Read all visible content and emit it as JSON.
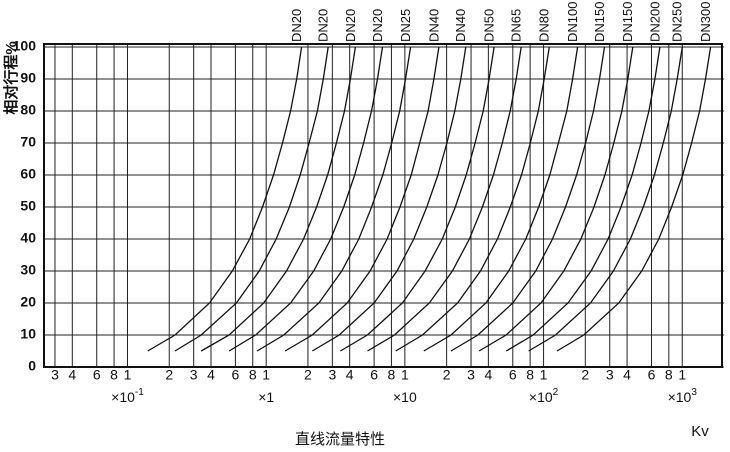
{
  "chart_data": {
    "type": "line",
    "y_label": "相对行程%",
    "x_label": "Kv",
    "caption": "直线流量特性",
    "xscale": "log",
    "grid": true,
    "color": "#111111",
    "xlim": [
      0.025,
      2000
    ],
    "ylim": [
      0,
      100
    ],
    "yticks": [
      0,
      10,
      20,
      30,
      40,
      50,
      60,
      70,
      80,
      90,
      100
    ],
    "xticks": [
      {
        "value": 0.03,
        "label": "3"
      },
      {
        "value": 0.04,
        "label": "4"
      },
      {
        "value": 0.06,
        "label": "6"
      },
      {
        "value": 0.08,
        "label": "8"
      },
      {
        "value": 0.1,
        "label": "1"
      },
      {
        "value": 0.2,
        "label": "2"
      },
      {
        "value": 0.3,
        "label": "3"
      },
      {
        "value": 0.4,
        "label": "4"
      },
      {
        "value": 0.6,
        "label": "6"
      },
      {
        "value": 0.8,
        "label": "8"
      },
      1,
      2,
      3,
      4,
      6,
      8,
      {
        "value": 10,
        "label": "1"
      },
      {
        "value": 20,
        "label": "2"
      },
      {
        "value": 30,
        "label": "3"
      },
      {
        "value": 40,
        "label": "4"
      },
      {
        "value": 60,
        "label": "6"
      },
      {
        "value": 80,
        "label": "8"
      },
      {
        "value": 100,
        "label": "1"
      },
      {
        "value": 200,
        "label": "2"
      },
      {
        "value": 300,
        "label": "3"
      },
      {
        "value": 400,
        "label": "4"
      },
      {
        "value": 600,
        "label": "6"
      },
      {
        "value": 800,
        "label": "8"
      },
      {
        "value": 1000,
        "label": "1"
      }
    ],
    "multipliers": [
      {
        "x": 0.1,
        "text": "×10",
        "sup": "-1"
      },
      {
        "x": 1,
        "text": "×1"
      },
      {
        "x": 10,
        "text": "×10"
      },
      {
        "x": 100,
        "text": "×10",
        "sup": "2"
      },
      {
        "x": 1000,
        "text": "×10",
        "sup": "3"
      }
    ],
    "series": [
      {
        "name": "DN20",
        "x": [
          0.14,
          0.22,
          0.39,
          0.57,
          0.76,
          0.94,
          1.13,
          1.31,
          1.5,
          1.66,
          1.8
        ],
        "values": [
          5,
          10,
          20,
          30,
          40,
          50,
          60,
          70,
          80,
          90,
          100
        ]
      },
      {
        "name": "DN20",
        "x": [
          0.22,
          0.34,
          0.61,
          0.89,
          1.18,
          1.47,
          1.76,
          2.04,
          2.34,
          2.58,
          2.8
        ],
        "values": [
          5,
          10,
          20,
          30,
          40,
          50,
          60,
          70,
          80,
          90,
          100
        ]
      },
      {
        "name": "DN20",
        "x": [
          0.34,
          0.54,
          0.96,
          1.4,
          1.86,
          2.31,
          2.77,
          3.21,
          3.67,
          4.05,
          4.4
        ],
        "values": [
          5,
          10,
          20,
          30,
          40,
          50,
          60,
          70,
          80,
          90,
          100
        ]
      },
      {
        "name": "DN20",
        "x": [
          0.54,
          0.84,
          1.5,
          2.2,
          2.92,
          3.62,
          4.35,
          5.04,
          5.75,
          6.35,
          6.9
        ],
        "values": [
          5,
          10,
          20,
          30,
          40,
          50,
          60,
          70,
          80,
          90,
          100
        ]
      },
      {
        "name": "DN25",
        "x": [
          0.86,
          1.34,
          2.4,
          3.51,
          4.65,
          5.76,
          6.93,
          8.03,
          9.17,
          10.1,
          11
        ],
        "values": [
          5,
          10,
          20,
          30,
          40,
          50,
          60,
          70,
          80,
          90,
          100
        ]
      },
      {
        "name": "DN40",
        "x": [
          1.37,
          2.15,
          3.84,
          5.61,
          7.44,
          9.22,
          11.1,
          12.8,
          14.7,
          16.2,
          17.6
        ],
        "values": [
          5,
          10,
          20,
          30,
          40,
          50,
          60,
          70,
          80,
          90,
          100
        ]
      },
      {
        "name": "DN40",
        "x": [
          2.15,
          3.36,
          6.0,
          8.77,
          11.6,
          14.4,
          17.3,
          20.1,
          22.9,
          25.3,
          27.5
        ],
        "values": [
          5,
          10,
          20,
          30,
          40,
          50,
          60,
          70,
          80,
          90,
          100
        ]
      },
      {
        "name": "DN50",
        "x": [
          3.43,
          5.37,
          9.59,
          14.0,
          18.6,
          23.1,
          27.7,
          32.1,
          36.7,
          40.5,
          44
        ],
        "values": [
          5,
          10,
          20,
          30,
          40,
          50,
          60,
          70,
          80,
          90,
          100
        ]
      },
      {
        "name": "DN65",
        "x": [
          5.38,
          8.42,
          15.0,
          22.0,
          29.2,
          36.2,
          43.5,
          50.4,
          57.5,
          63.5,
          69
        ],
        "values": [
          5,
          10,
          20,
          30,
          40,
          50,
          60,
          70,
          80,
          90,
          100
        ]
      },
      {
        "name": "DN80",
        "x": [
          8.58,
          13.4,
          24.0,
          35.1,
          46.5,
          57.6,
          69.3,
          80.3,
          91.7,
          101,
          110
        ],
        "values": [
          5,
          10,
          20,
          30,
          40,
          50,
          60,
          70,
          80,
          90,
          100
        ]
      },
      {
        "name": "DN100",
        "x": [
          13.7,
          21.5,
          38.4,
          56.1,
          74.4,
          92.2,
          111,
          128,
          147,
          162,
          176
        ],
        "values": [
          5,
          10,
          20,
          30,
          40,
          50,
          60,
          70,
          80,
          90,
          100
        ]
      },
      {
        "name": "DN150",
        "x": [
          21.5,
          33.6,
          60.0,
          87.7,
          116,
          144,
          173,
          201,
          229,
          253,
          275
        ],
        "values": [
          5,
          10,
          20,
          30,
          40,
          50,
          60,
          70,
          80,
          90,
          100
        ]
      },
      {
        "name": "DN150",
        "x": [
          34.3,
          53.7,
          95.9,
          140,
          186,
          231,
          277,
          321,
          367,
          405,
          440
        ],
        "values": [
          5,
          10,
          20,
          30,
          40,
          50,
          60,
          70,
          80,
          90,
          100
        ]
      },
      {
        "name": "DN200",
        "x": [
          53.8,
          84.2,
          150,
          220,
          292,
          362,
          435,
          504,
          575,
          635,
          690
        ],
        "values": [
          5,
          10,
          20,
          30,
          40,
          50,
          60,
          70,
          80,
          90,
          100
        ]
      },
      {
        "name": "DN250",
        "x": [
          78,
          122,
          218,
          319,
          423,
          524,
          630,
          730,
          834,
          920,
          1000
        ],
        "values": [
          5,
          10,
          20,
          30,
          40,
          50,
          60,
          70,
          80,
          90,
          100
        ]
      },
      {
        "name": "DN300",
        "x": [
          125,
          195,
          349,
          510,
          677,
          838,
          1008,
          1168,
          1334,
          1472,
          1600
        ],
        "values": [
          5,
          10,
          20,
          30,
          40,
          50,
          60,
          70,
          80,
          90,
          100
        ]
      }
    ]
  }
}
